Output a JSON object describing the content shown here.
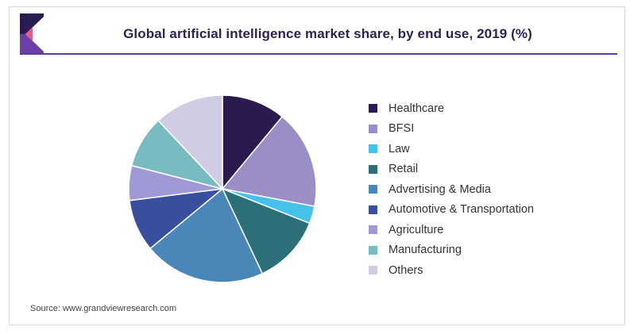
{
  "header": {
    "title": "Global artificial intelligence market share, by end use, 2019 (%)",
    "logo_colors": [
      "#2a1b52",
      "#6b3fa8",
      "#e25c8f"
    ]
  },
  "footer": {
    "source": "Source: www.grandviewresearch.com"
  },
  "chart_data": {
    "type": "pie",
    "title": "Global artificial intelligence market share, by end use, 2019 (%)",
    "legend_position": "right",
    "start_angle_deg": 0,
    "direction": "clockwise",
    "slices": [
      {
        "label": "Healthcare",
        "value": 11,
        "color": "#2b1a4d"
      },
      {
        "label": "BFSI",
        "value": 17,
        "color": "#9b8ec4"
      },
      {
        "label": "Law",
        "value": 3,
        "color": "#45c1ea"
      },
      {
        "label": "Retail",
        "value": 12,
        "color": "#2b6f78"
      },
      {
        "label": "Advertising & Media",
        "value": 21,
        "color": "#4b86b8"
      },
      {
        "label": "Automotive & Transportation",
        "value": 9,
        "color": "#3a4e9e"
      },
      {
        "label": "Agriculture",
        "value": 6,
        "color": "#9f9ad6"
      },
      {
        "label": "Manufacturing",
        "value": 9,
        "color": "#78bcc1"
      },
      {
        "label": "Others",
        "value": 12,
        "color": "#d1cce4"
      }
    ]
  }
}
